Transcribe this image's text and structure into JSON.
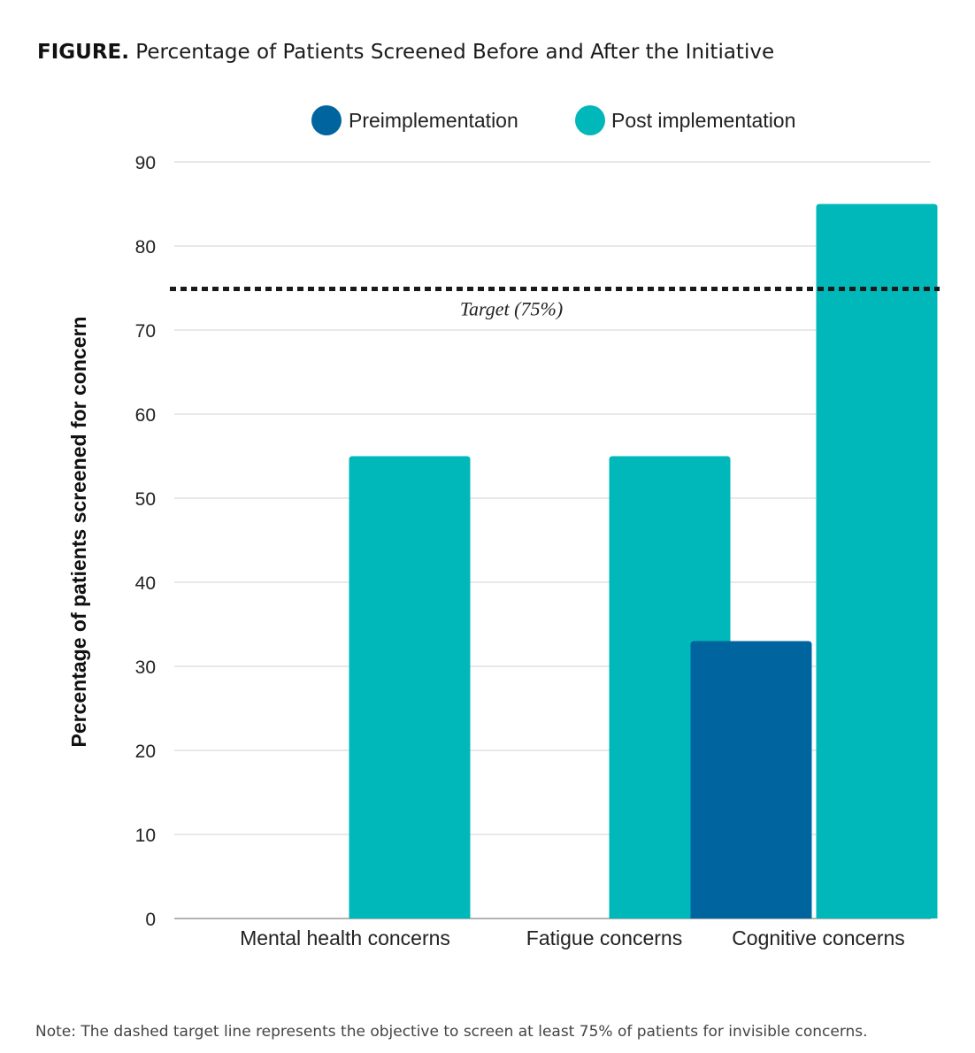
{
  "figure": {
    "label": "FIGURE.",
    "title": "Percentage of Patients Screened Before and After the Initiative",
    "note": "Note: The dashed target line represents the objective to screen at least 75% of patients for invisible concerns."
  },
  "chart_data": {
    "type": "bar",
    "title": "",
    "xlabel": "",
    "ylabel": "Percentage of patients screened for concern",
    "categories": [
      "Mental health concerns",
      "Fatigue concerns",
      "Cognitive concerns"
    ],
    "series": [
      {
        "name": "Preimplementation",
        "color": "#00649f",
        "values": [
          0,
          0,
          33
        ]
      },
      {
        "name": "Post implementation",
        "color": "#00b8b9",
        "values": [
          55,
          55,
          85
        ]
      }
    ],
    "ylim": [
      0,
      90
    ],
    "yticks": [
      "0",
      "10",
      "20",
      "30",
      "40",
      "50",
      "60",
      "70",
      "80",
      "90"
    ],
    "grid": true,
    "legend_position": "top",
    "target": {
      "value": 75,
      "label": "Target (75%)",
      "style": "dashed"
    }
  }
}
